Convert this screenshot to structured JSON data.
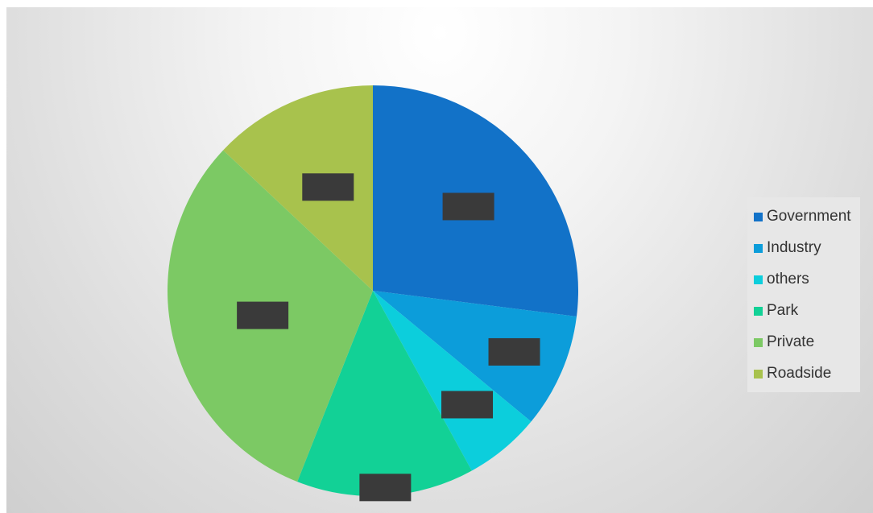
{
  "chart_data": {
    "type": "pie",
    "title": "",
    "start_angle_deg": 0,
    "direction": "clockwise",
    "slices": [
      {
        "label": "Government",
        "value": 27,
        "color": "#1272C8"
      },
      {
        "label": "Industry",
        "value": 9,
        "color": "#0C9DDA"
      },
      {
        "label": "others",
        "value": 6,
        "color": "#0CCEDC"
      },
      {
        "label": "Park",
        "value": 14,
        "color": "#12D196"
      },
      {
        "label": "Private",
        "value": 31,
        "color": "#7CC964"
      },
      {
        "label": "Roadside",
        "value": 13,
        "color": "#A8C24D"
      }
    ],
    "data_labels": "redacted",
    "data_label_color": "#3a3a3a",
    "legend_position": "right"
  },
  "legend": {
    "items": [
      {
        "label": "Government",
        "color": "#1272C8"
      },
      {
        "label": "Industry",
        "color": "#0C9DDA"
      },
      {
        "label": "others",
        "color": "#0CCEDC"
      },
      {
        "label": "Park",
        "color": "#12D196"
      },
      {
        "label": "Private",
        "color": "#7CC964"
      },
      {
        "label": "Roadside",
        "color": "#A8C24D"
      }
    ]
  }
}
